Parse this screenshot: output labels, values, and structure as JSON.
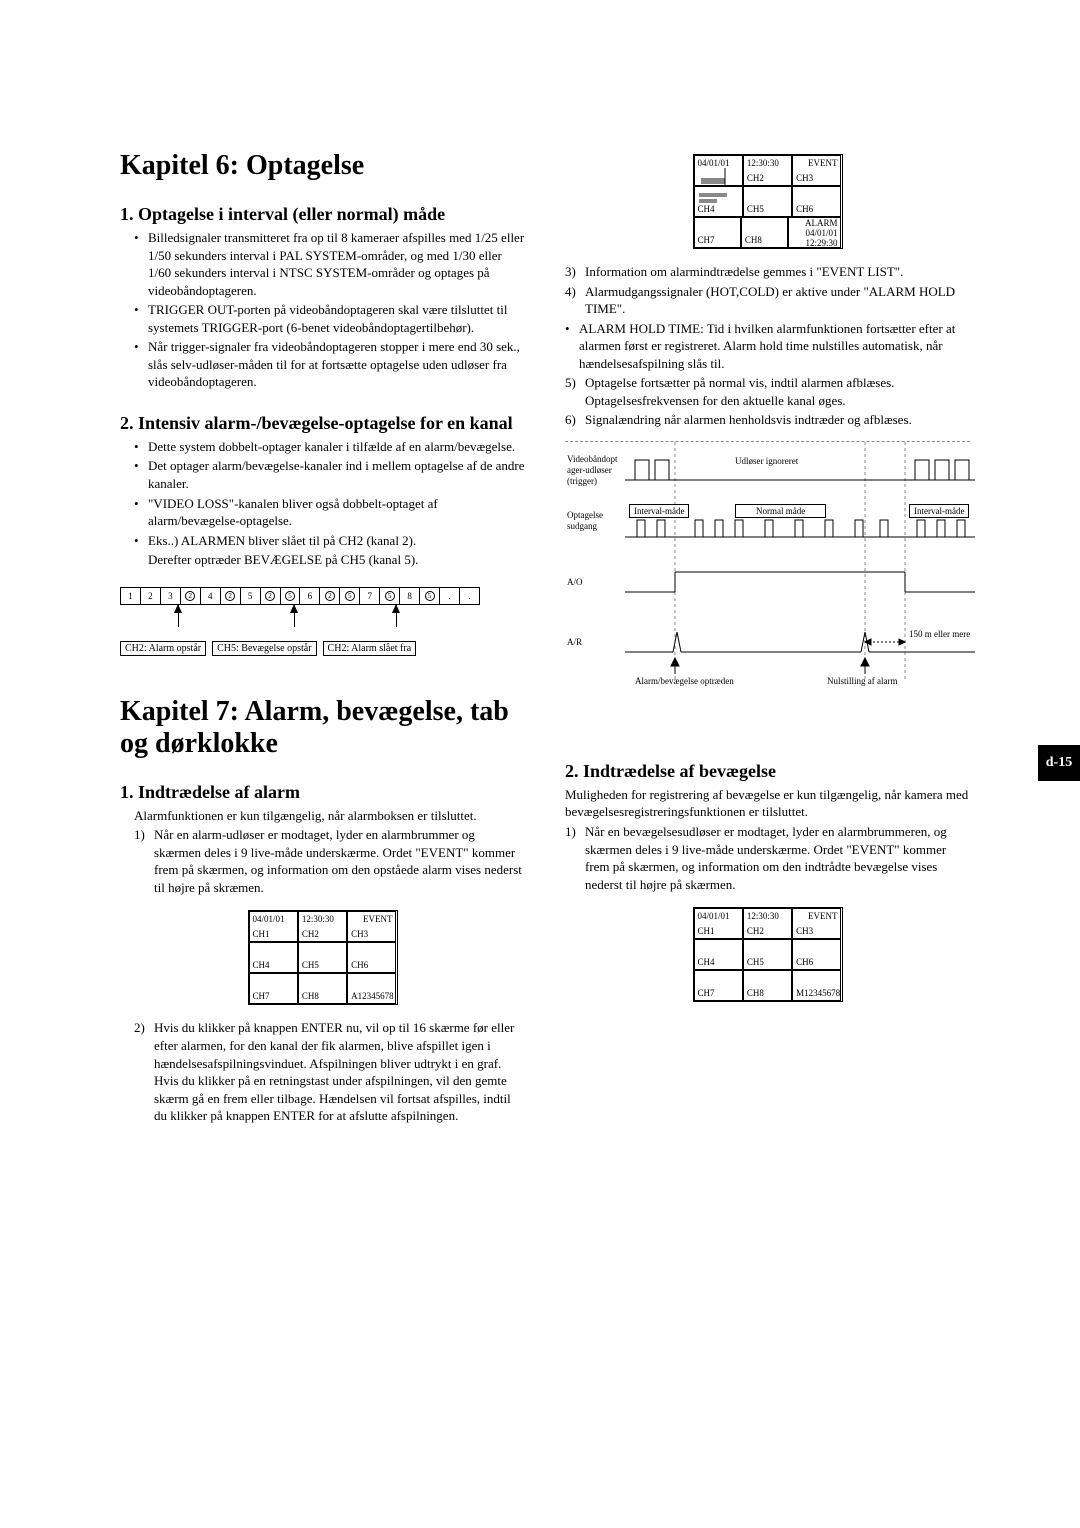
{
  "page_tab": "d-15",
  "chapter6": {
    "title": "Kapitel 6: Optagelse",
    "s1": {
      "heading": "1. Optagelse i interval (eller normal) måde",
      "b1": "Billedsignaler transmitteret fra op til 8 kameraer afspilles med 1/25 eller 1/50 sekunders interval i PAL SYSTEM-områder, og med 1/30 eller 1/60 sekunders interval i NTSC SYSTEM-områder og optages på videobåndoptageren.",
      "b2": "TRIGGER OUT-porten på videobåndoptageren skal være tilsluttet til systemets TRIGGER-port (6-benet videobåndoptagertilbehør).",
      "b3": "Når trigger-signaler fra videobåndoptageren stopper i mere end 30 sek., slås selv-udløser-måden til for at fortsætte optagelse uden udløser fra videobåndoptageren."
    },
    "s2": {
      "heading": "2. Intensiv alarm-/bevægelse-optagelse for en kanal",
      "b1": "Dette system dobbelt-optager kanaler i tilfælde af en alarm/bevægelse.",
      "b2": "Det optager alarm/bevægelse-kanaler ind i mellem optagelse af de andre kanaler.",
      "b3": "\"VIDEO LOSS\"-kanalen bliver også dobbelt-optaget af alarm/bevægelse-optagelse.",
      "b4": "Eks..) ALARMEN bliver slået til på CH2 (kanal 2).",
      "b4s": "Derefter optræder BEVÆGELSE på CH5 (kanal 5).",
      "bar_labels": [
        "1",
        "2",
        "3",
        "②",
        "4",
        "②",
        "5",
        "②",
        "⑤",
        "6",
        "②",
        "⑤",
        "7",
        "⑤",
        "8",
        "⑤",
        ".",
        "."
      ],
      "lab1": "CH2: Alarm opstår",
      "lab2": "CH5: Bevægelse opstår",
      "lab3": "CH2: Alarm slået fra"
    }
  },
  "chapter7": {
    "title": "Kapitel 7: Alarm, bevægelse, tab og dørklokke",
    "s1": {
      "heading": "1. Indtrædelse af alarm",
      "lead": "Alarmfunktionen er kun tilgængelig, når alarmboksen er tilsluttet.",
      "n1": "Når en alarm-udløser er modtaget, lyder en alarmbrummer og skærmen deles i 9 live-måde underskærme. Ordet \"EVENT\" kommer frem på skærmen, og information om den opståede alarm vises nederst til højre på skræmen.",
      "n2": "Hvis du klikker på knappen ENTER nu, vil op til 16 skærme før eller efter alarmen, for den kanal der fik alarmen, blive afspillet igen i hændelsesafspilningsvinduet. Afspilningen bliver udtrykt i en graf. Hvis du klikker på en retningstast under afspilningen, vil den gemte skærm gå en frem eller tilbage. Hændelsen vil fortsat afspilles, indtil du klikker på knappen ENTER for at afslutte afspilningen."
    },
    "s2": {
      "heading": "2. Indtrædelse af bevægelse",
      "lead": "Muligheden for registrering af bevægelse er kun tilgængelig, når kamera med bevægelsesregistreringsfunktionen er tilsluttet.",
      "n1": "Når en bevægelsesudløser er modtaget, lyder en alarmbrummeren, og skærmen deles i 9 live-måde underskærme. Ordet \"EVENT\" kommer frem på skærmen, og information om den indtrådte bevægelse vises nederst til højre på skærmen."
    },
    "right": {
      "n3": "Information om alarmindtrædelse gemmes i \"EVENT LIST\".",
      "n4": "Alarmudgangssignaler (HOT,COLD) er aktive under \"ALARM HOLD TIME\".",
      "b_hold": "ALARM HOLD TIME: Tid i hvilken alarmfunktionen fortsætter efter at alarmen først er registreret. Alarm hold time nulstilles automatisk, når hændelsesafspilning slås til.",
      "n5": "Optagelse fortsætter på normal vis, indtil alarmen afblæses. Optagelsesfrekvensen for den aktuelle kanal øges.",
      "n6": "Signalændring når alarmen henholdsvis indtræder og afblæses."
    }
  },
  "grid": {
    "date": "04/01/01",
    "time": "12:30:30",
    "event": "EVENT",
    "ch1": "CH1",
    "ch2": "CH2",
    "ch3": "CH3",
    "ch4": "CH4",
    "ch5": "CH5",
    "ch6": "CH6",
    "ch7": "CH7",
    "ch8": "CH8",
    "a_code": "A12345678",
    "m_code": "M12345678",
    "alarm": "ALARM",
    "alarm_date": "04/01/01",
    "alarm_time": "12:29:30"
  },
  "timing": {
    "row1": "Videobåndopt ager-udløser (trigger)",
    "row2": "Optagelse sudgang",
    "row3": "A/O",
    "row4": "A/R",
    "ignored": "Udløser ignoreret",
    "interval": "Interval-måde",
    "normal": "Normal måde",
    "bottom_left": "Alarm/bevægelse optræden",
    "bottom_right": "Nulstilling af alarm",
    "note": "150 m eller mere"
  }
}
